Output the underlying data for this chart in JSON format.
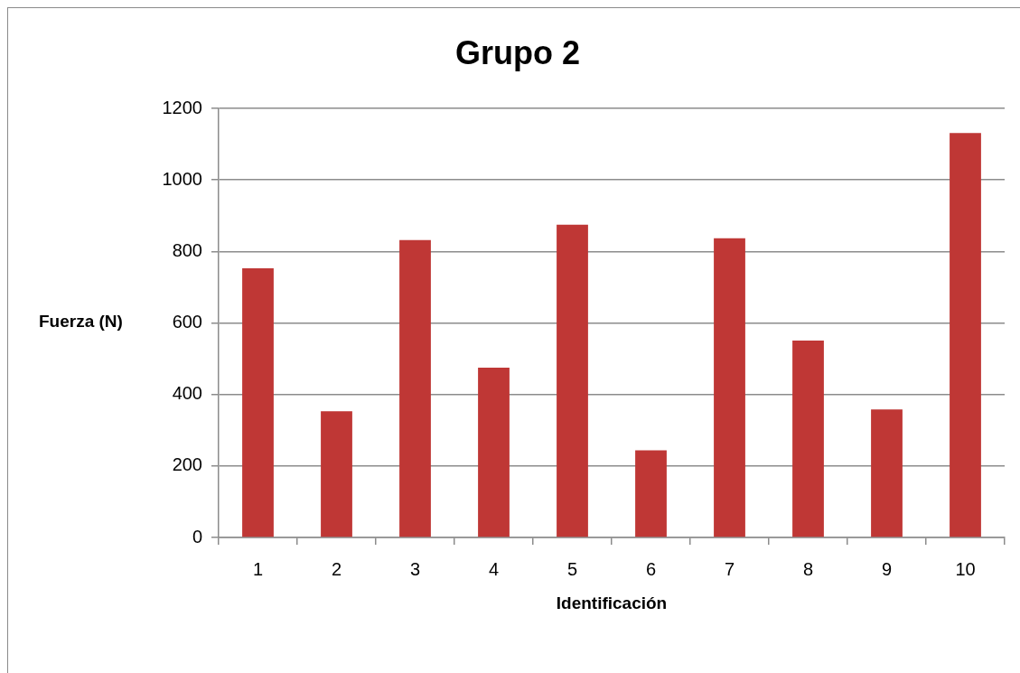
{
  "chart_data": {
    "type": "bar",
    "title": "Grupo 2",
    "xlabel": "Identificación",
    "ylabel": "Fuerza (N)",
    "categories": [
      "1",
      "2",
      "3",
      "4",
      "5",
      "6",
      "7",
      "8",
      "9",
      "10"
    ],
    "values": [
      753,
      353,
      832,
      475,
      875,
      244,
      837,
      551,
      358,
      1131
    ],
    "color": "#bf3735",
    "ylim": [
      0,
      1200
    ],
    "yticks": [
      0,
      200,
      400,
      600,
      800,
      1000,
      1200
    ],
    "grid": "y"
  }
}
